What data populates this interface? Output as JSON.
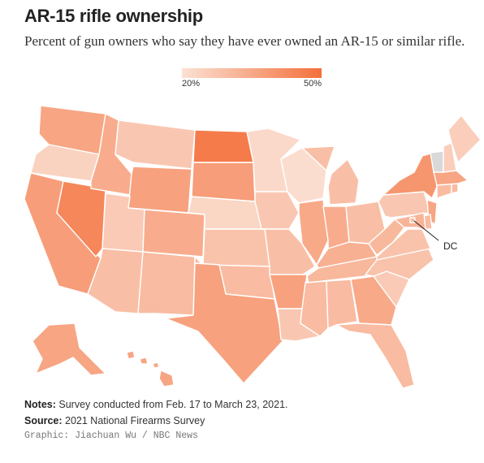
{
  "title": "AR-15 rifle ownership",
  "subtitle": "Percent of gun owners who say they have ever owned an AR-15 or similar rifle.",
  "legend": {
    "min_label": "20%",
    "max_label": "50%",
    "min_value": 20,
    "max_value": 50,
    "color_low": "#fbe1d4",
    "color_high": "#f4703c"
  },
  "annotation": {
    "dc_label": "DC"
  },
  "notes": {
    "label": "Notes:",
    "text": "Survey conducted from Feb. 17 to March 23, 2021."
  },
  "source": {
    "label": "Source:",
    "text": "2021 National Firearms Survey"
  },
  "credit": "Graphic: Jiachuan Wu / NBC News",
  "map_data": {
    "type": "choropleth",
    "no_data_color": "#d9d9d9",
    "states": [
      {
        "id": "WA",
        "value": 36
      },
      {
        "id": "OR",
        "value": 24
      },
      {
        "id": "CA",
        "value": 38
      },
      {
        "id": "NV",
        "value": 44
      },
      {
        "id": "ID",
        "value": 34
      },
      {
        "id": "MT",
        "value": 27
      },
      {
        "id": "WY",
        "value": 37
      },
      {
        "id": "UT",
        "value": 26
      },
      {
        "id": "AZ",
        "value": 29
      },
      {
        "id": "NM",
        "value": 30
      },
      {
        "id": "CO",
        "value": 34
      },
      {
        "id": "ND",
        "value": 47
      },
      {
        "id": "SD",
        "value": 38
      },
      {
        "id": "NE",
        "value": 23
      },
      {
        "id": "KS",
        "value": 28
      },
      {
        "id": "OK",
        "value": 30
      },
      {
        "id": "TX",
        "value": 37
      },
      {
        "id": "MN",
        "value": 22
      },
      {
        "id": "IA",
        "value": 27
      },
      {
        "id": "MO",
        "value": 29
      },
      {
        "id": "AR",
        "value": 37
      },
      {
        "id": "LA",
        "value": 27
      },
      {
        "id": "WI",
        "value": 21
      },
      {
        "id": "IL",
        "value": 35
      },
      {
        "id": "MI",
        "value": 29
      },
      {
        "id": "IN",
        "value": 34
      },
      {
        "id": "OH",
        "value": 29
      },
      {
        "id": "KY",
        "value": 33
      },
      {
        "id": "TN",
        "value": 31
      },
      {
        "id": "MS",
        "value": 30
      },
      {
        "id": "AL",
        "value": 30
      },
      {
        "id": "GA",
        "value": 35
      },
      {
        "id": "FL",
        "value": 30
      },
      {
        "id": "SC",
        "value": 26
      },
      {
        "id": "NC",
        "value": 28
      },
      {
        "id": "VA",
        "value": 28
      },
      {
        "id": "WV",
        "value": 31
      },
      {
        "id": "PA",
        "value": 27
      },
      {
        "id": "NY",
        "value": 40
      },
      {
        "id": "NJ",
        "value": 36
      },
      {
        "id": "DE",
        "value": 30
      },
      {
        "id": "MD",
        "value": 32
      },
      {
        "id": "DC",
        "value": 30
      },
      {
        "id": "CT",
        "value": 30
      },
      {
        "id": "RI",
        "value": 30
      },
      {
        "id": "MA",
        "value": 36
      },
      {
        "id": "VT",
        "value": null
      },
      {
        "id": "NH",
        "value": 25
      },
      {
        "id": "ME",
        "value": 25
      },
      {
        "id": "AK",
        "value": 36
      },
      {
        "id": "HI",
        "value": 36
      }
    ]
  }
}
